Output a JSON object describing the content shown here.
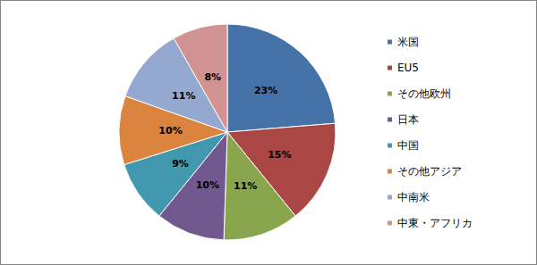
{
  "chart_data": {
    "type": "pie",
    "categories": [
      "米国",
      "EU5",
      "その他欧州",
      "日本",
      "中国",
      "その他アジア",
      "中南米",
      "中東・アフリカ"
    ],
    "values": [
      23,
      15,
      11,
      10,
      9,
      10,
      11,
      8
    ],
    "value_labels": [
      "23%",
      "15%",
      "11%",
      "10%",
      "9%",
      "10%",
      "11%",
      "8%"
    ],
    "colors": [
      "#4572A7",
      "#AA4643",
      "#89A54E",
      "#71588F",
      "#4198AF",
      "#DB843D",
      "#93A9CF",
      "#D19392"
    ],
    "data_labels": true,
    "legend": "right"
  }
}
